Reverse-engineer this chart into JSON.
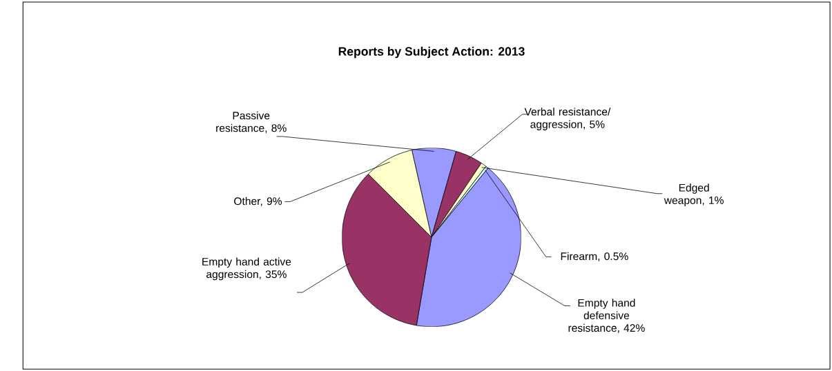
{
  "chart_data": {
    "type": "pie",
    "title": "Reports by Subject Action: 2013",
    "categories": [
      "Passive resistance, 8%",
      "Verbal resistance/ aggression, 5%",
      "Edged weapon, 1%",
      "Firearm, 0.5%",
      "Empty hand defensive resistance, 42%",
      "Empty hand active aggression, 35%",
      "Other, 9%"
    ],
    "values": [
      8,
      5,
      1,
      0.5,
      42,
      35,
      9
    ],
    "colors": [
      "#9999ff",
      "#993366",
      "#ffffcc",
      "#ccffff",
      "#9999ff",
      "#993366",
      "#ffffcc"
    ]
  }
}
